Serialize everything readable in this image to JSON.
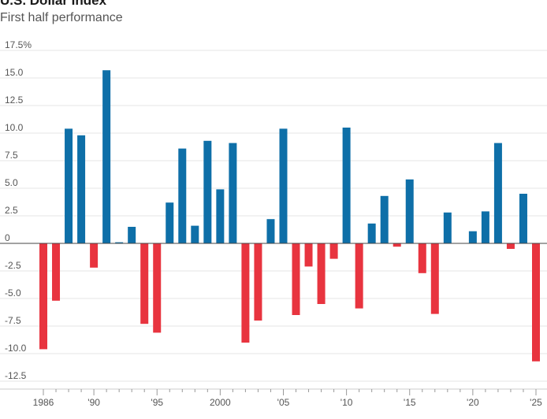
{
  "chart_data": {
    "type": "bar",
    "title": "U.S. Dollar Index",
    "subtitle": "First half performance",
    "ylim": [
      -12.5,
      17.5
    ],
    "y_ticks": [
      17.5,
      15.0,
      12.5,
      10.0,
      7.5,
      5.0,
      2.5,
      0,
      -2.5,
      -5.0,
      -7.5,
      -10.0,
      -12.5
    ],
    "y_tick_labels": [
      "17.5%",
      "15.0",
      "12.5",
      "10.0",
      "7.5",
      "5.0",
      "2.5",
      "0",
      "-2.5",
      "-5.0",
      "-7.5",
      "-10.0",
      "-12.5"
    ],
    "x_ticks": [
      1986,
      1990,
      1995,
      2000,
      2005,
      2010,
      2015,
      2020,
      2025
    ],
    "x_tick_labels": [
      "1986",
      "'90",
      "'95",
      "2000",
      "'05",
      "'10",
      "'15",
      "'20",
      "'25"
    ],
    "positive_color": "#0e6fa8",
    "negative_color": "#e8343f",
    "years": [
      1986,
      1987,
      1988,
      1989,
      1990,
      1991,
      1992,
      1993,
      1994,
      1995,
      1996,
      1997,
      1998,
      1999,
      2000,
      2001,
      2002,
      2003,
      2004,
      2005,
      2006,
      2007,
      2008,
      2009,
      2010,
      2011,
      2012,
      2013,
      2014,
      2015,
      2016,
      2017,
      2018,
      2019,
      2020,
      2021,
      2022,
      2023,
      2024,
      2025
    ],
    "values": [
      -9.6,
      -5.2,
      10.4,
      9.8,
      -2.2,
      15.7,
      0.1,
      1.5,
      -7.3,
      -8.1,
      3.7,
      8.6,
      1.6,
      9.3,
      4.9,
      9.1,
      -9.0,
      -7.0,
      2.2,
      10.4,
      -6.5,
      -2.1,
      -5.5,
      -1.4,
      10.5,
      -5.9,
      1.8,
      4.3,
      -0.3,
      5.8,
      -2.7,
      -6.4,
      2.8,
      0.0,
      1.1,
      2.9,
      9.1,
      -0.5,
      4.5,
      -10.7
    ]
  }
}
